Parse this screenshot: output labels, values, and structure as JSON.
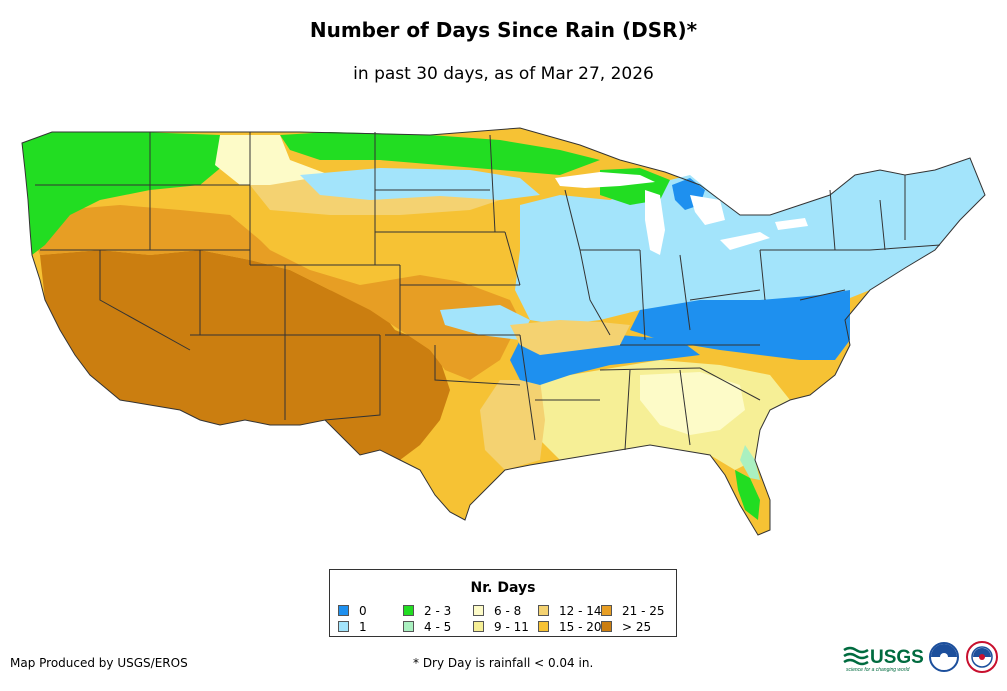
{
  "header": {
    "title": "Number of Days Since Rain (DSR)*",
    "subtitle": "in past 30 days, as of Mar 27, 2026"
  },
  "legend": {
    "title": "Nr. Days",
    "items": [
      {
        "label": "0",
        "color": "#1e90ef"
      },
      {
        "label": "1",
        "color": "#a3e4fb"
      },
      {
        "label": "2 - 3",
        "color": "#22dd22"
      },
      {
        "label": "4 - 5",
        "color": "#aaf0c0"
      },
      {
        "label": "6 - 8",
        "color": "#fdfbc8"
      },
      {
        "label": "9 - 11",
        "color": "#f6ef96"
      },
      {
        "label": "12 - 14",
        "color": "#f4d271"
      },
      {
        "label": "15 - 20",
        "color": "#f6c234"
      },
      {
        "label": "21 - 25",
        "color": "#e79e24"
      },
      {
        "label": "> 25",
        "color": "#cb7e10"
      }
    ]
  },
  "footer": {
    "credit": "Map Produced by USGS/EROS",
    "note": "* Dry Day is rainfall < 0.04 in."
  },
  "logos": {
    "usgs_text": "USGS",
    "usgs_tagline": "science for a changing world"
  }
}
